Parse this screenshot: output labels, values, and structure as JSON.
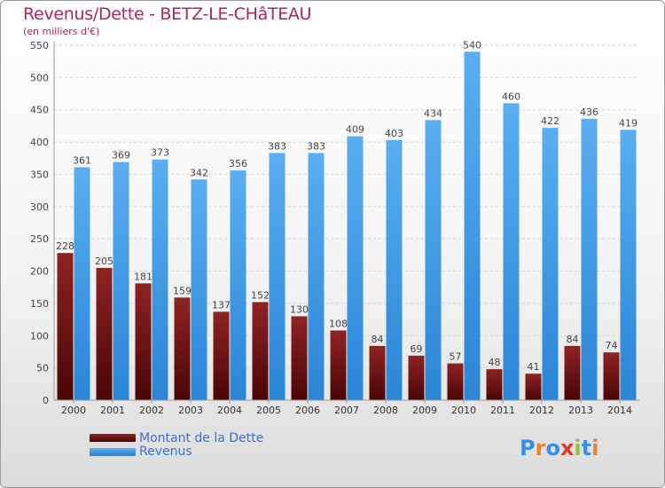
{
  "header": {
    "title": "Revenus/Dette - BETZ-LE-CHâTEAU",
    "subtitle": "(en milliers d'€)"
  },
  "colors": {
    "dette": "#7a1414",
    "revenus": "#3a97e4",
    "title": "#b0245c",
    "legend_text": "#3b6fd6"
  },
  "legend": {
    "dette_label": "Montant de la Dette",
    "revenus_label": "Revenus"
  },
  "logo": {
    "text": "Proxiti"
  },
  "chart_data": {
    "type": "bar",
    "categories": [
      "2000",
      "2001",
      "2002",
      "2003",
      "2004",
      "2005",
      "2006",
      "2007",
      "2008",
      "2009",
      "2010",
      "2011",
      "2012",
      "2013",
      "2014"
    ],
    "series": [
      {
        "name": "Montant de la Dette",
        "values": [
          228,
          205,
          181,
          159,
          137,
          152,
          130,
          108,
          84,
          69,
          57,
          48,
          41,
          84,
          74
        ]
      },
      {
        "name": "Revenus",
        "values": [
          361,
          369,
          373,
          342,
          356,
          383,
          383,
          409,
          403,
          434,
          540,
          460,
          422,
          436,
          419
        ]
      }
    ],
    "ylim": [
      0,
      550
    ],
    "yticks": [
      0,
      50,
      100,
      150,
      200,
      250,
      300,
      350,
      400,
      450,
      500,
      550
    ],
    "grid": true,
    "legend_position": "bottom-left"
  }
}
